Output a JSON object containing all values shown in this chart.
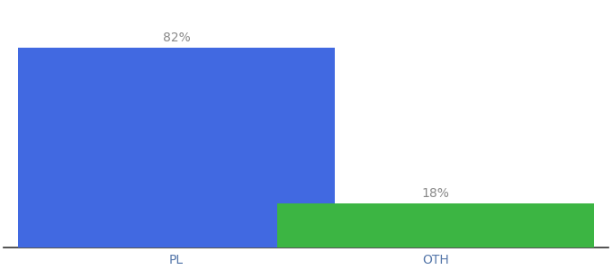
{
  "categories": [
    "PL",
    "OTH"
  ],
  "values": [
    82,
    18
  ],
  "bar_colors": [
    "#4169e1",
    "#3cb543"
  ],
  "labels": [
    "82%",
    "18%"
  ],
  "background_color": "#ffffff",
  "ylim": [
    0,
    100
  ],
  "bar_width": 0.55,
  "x_positions": [
    0.3,
    0.75
  ],
  "xlim": [
    0.0,
    1.05
  ],
  "figsize": [
    6.8,
    3.0
  ],
  "dpi": 100,
  "label_color": "#888888",
  "label_fontsize": 10,
  "tick_fontsize": 10,
  "tick_color": "#5577aa"
}
